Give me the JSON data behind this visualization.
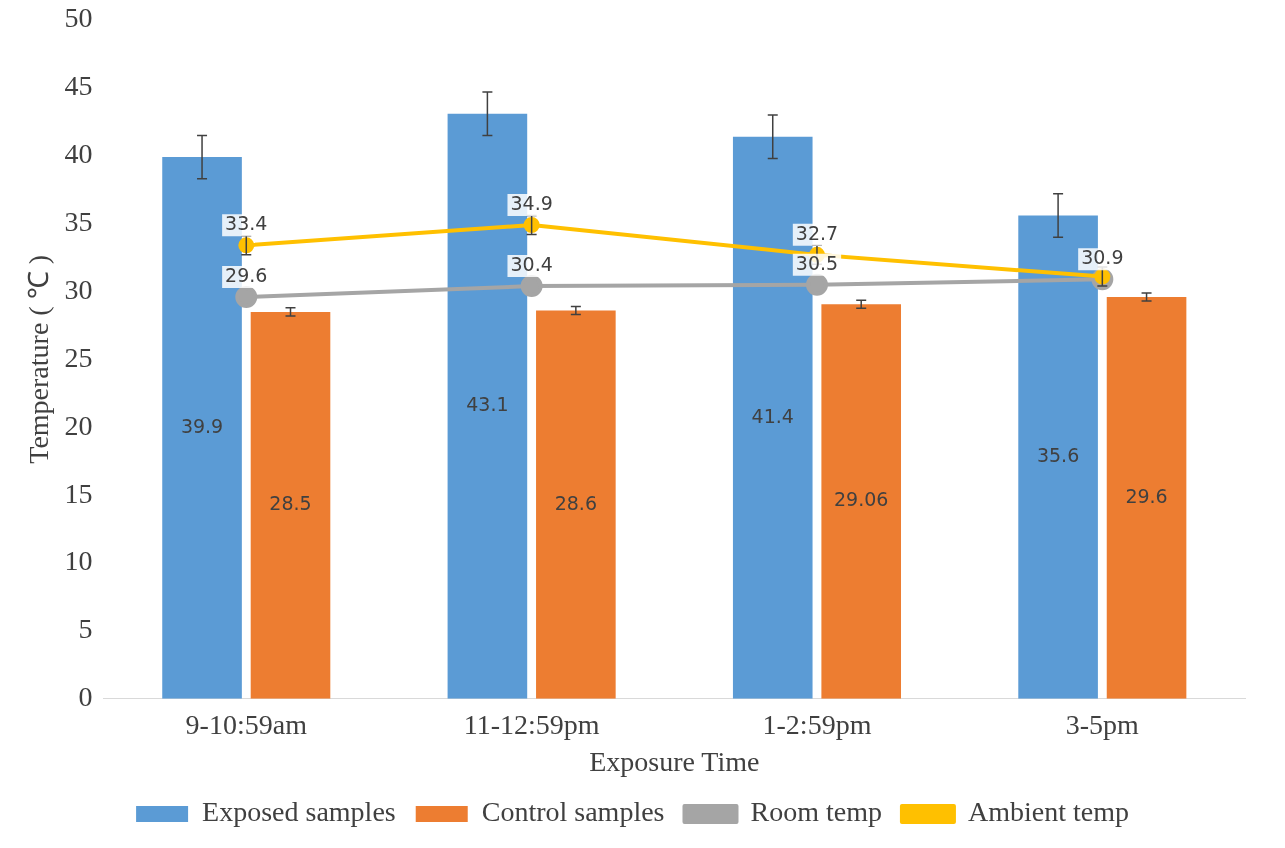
{
  "chart_data": {
    "type": "bar",
    "xlabel": "Exposure Time",
    "ylabel": "Temperature ( ℃ )",
    "categories": [
      "9-10:59am",
      "11-12:59pm",
      "1-2:59pm",
      "3-5pm"
    ],
    "ylim": [
      0,
      50
    ],
    "yticks": [
      0,
      5,
      10,
      15,
      20,
      25,
      30,
      35,
      40,
      45,
      50
    ],
    "grid": false,
    "legend": "bottom",
    "data_labels": true,
    "series": [
      {
        "name": "Exposed samples",
        "color": "#5b9bd5",
        "values": [
          39.9,
          43.1,
          41.4,
          35.6
        ],
        "errors": [
          1.6,
          1.6,
          1.6,
          1.6
        ]
      },
      {
        "name": "Control samples",
        "color": "#ed7d31",
        "values": [
          28.5,
          28.6,
          29.06,
          29.6
        ],
        "errors": [
          0.3,
          0.3,
          0.3,
          0.3
        ]
      },
      {
        "name": "Room temp",
        "type": "line",
        "color": "#a5a5a5",
        "marker": "circle",
        "values": [
          29.6,
          30.4,
          30.5,
          30.9
        ]
      },
      {
        "name": "Ambient temp",
        "type": "line",
        "color": "#ffc000",
        "marker": "circle",
        "values": [
          33.4,
          34.9,
          32.7,
          31.1
        ],
        "errors": [
          0.7,
          0.7,
          0.7,
          0.7
        ],
        "value_labels": [
          "33.4",
          "34.9",
          "32.7",
          null
        ]
      }
    ]
  }
}
